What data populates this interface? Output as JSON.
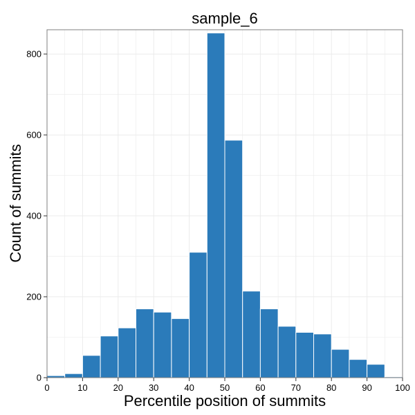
{
  "chart_data": {
    "type": "bar",
    "title": "sample_6",
    "xlabel": "Percentile position of summits",
    "ylabel": "Count of summits",
    "bin_width": 5,
    "bins": [
      0,
      5,
      10,
      15,
      20,
      25,
      30,
      35,
      40,
      45,
      50,
      55,
      60,
      65,
      70,
      75,
      80,
      85,
      90,
      95
    ],
    "values": [
      5,
      10,
      55,
      103,
      123,
      170,
      162,
      146,
      310,
      852,
      587,
      214,
      170,
      127,
      112,
      108,
      70,
      45,
      33,
      2
    ],
    "xlim": [
      0,
      100
    ],
    "ylim": [
      0,
      860
    ],
    "x_ticks": [
      0,
      10,
      20,
      30,
      40,
      50,
      60,
      70,
      80,
      90,
      100
    ],
    "y_ticks": [
      0,
      200,
      400,
      600,
      800
    ],
    "grid": true,
    "colors": {
      "bar": "#2b7bba",
      "bar_edge": "#ffffff",
      "grid": "#ebebeb",
      "panel_border": "#7f7f7f"
    }
  }
}
